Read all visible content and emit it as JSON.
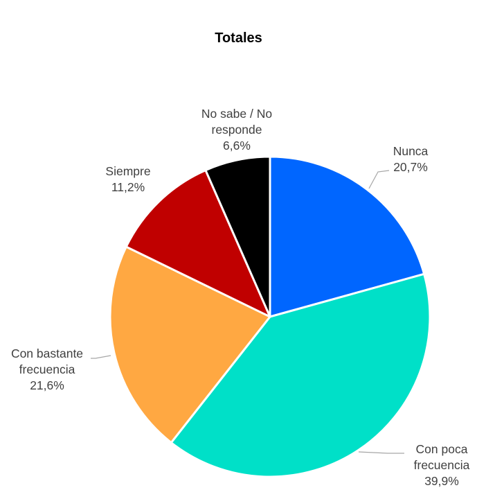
{
  "chart_data": {
    "type": "pie",
    "title": "Totales",
    "start_angle_deg": 0,
    "direction": "clockwise",
    "slices": [
      {
        "name": "Nunca",
        "value": 20.7,
        "label_value": "20,7%",
        "color": "#0066FF"
      },
      {
        "name": "Con poca frecuencia",
        "value": 39.9,
        "label_value": "39,9%",
        "color": "#00E0C8"
      },
      {
        "name": "Con bastante frecuencia",
        "value": 21.6,
        "label_value": "21,6%",
        "color": "#FFA842"
      },
      {
        "name": "Siempre",
        "value": 11.2,
        "label_value": "11,2%",
        "color": "#C00000"
      },
      {
        "name": "No sabe / No responde",
        "value": 6.6,
        "label_value": "6,6%",
        "color": "#000000"
      }
    ],
    "label_lines": [
      [
        "Nunca",
        "20,7%"
      ],
      [
        "Con poca",
        "frecuencia",
        "39,9%"
      ],
      [
        "Con bastante",
        "frecuencia",
        "21,6%"
      ],
      [
        "Siempre",
        "11,2%"
      ],
      [
        "No sabe / No",
        "responde",
        "6,6%"
      ]
    ],
    "leader_lines": [
      true,
      true,
      true,
      false,
      false
    ]
  }
}
